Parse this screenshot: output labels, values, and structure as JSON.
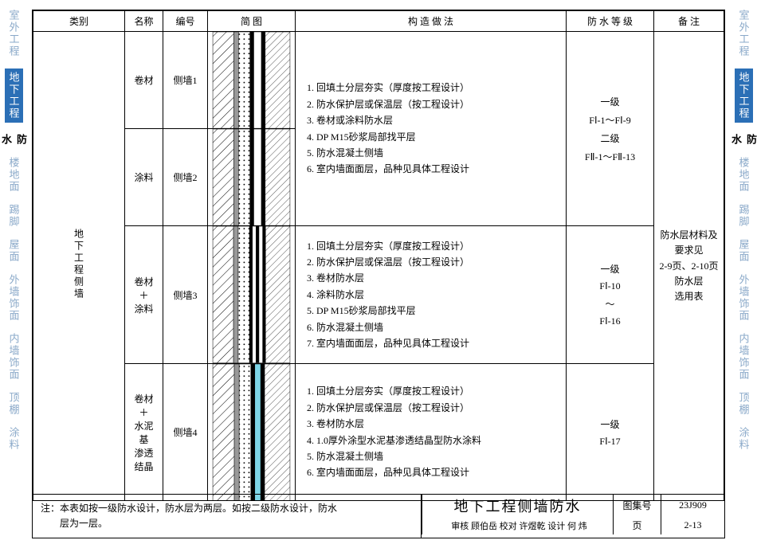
{
  "colors": {
    "tab_inactive": "#8aa9c9",
    "tab_active_bg": "#2b6fb6",
    "border": "#000000",
    "cyan": "#7ed6e8"
  },
  "side_tabs": {
    "items": [
      "室外工程",
      "地下工程",
      "楼地面",
      "踢脚",
      "屋面",
      "外墙饰面",
      "内墙饰面",
      "顶棚",
      "涂料"
    ],
    "active_index": 1,
    "prefix_char": "防",
    "prefix_char2": "水"
  },
  "header": {
    "cat": "类别",
    "name": "名称",
    "code": "编号",
    "diag": "简  图",
    "make": "构  造  做  法",
    "grade": "防 水 等 级",
    "note": "备  注"
  },
  "category_label": "地下工程侧墙",
  "rows": [
    {
      "name": "卷材",
      "code": "侧墙1",
      "diagram_style": "A",
      "make_list": [
        "回填土分层夯实（厚度按工程设计）",
        "防水保护层或保温层（按工程设计）",
        "卷材或涂料防水层",
        "DP M15砂浆局部找平层",
        "防水混凝土侧墙",
        "室内墙面面层，品种见具体工程设计"
      ],
      "grade": [
        "一级",
        "FⅠ-1～FⅠ-9",
        "",
        "二级",
        "FⅡ-1～FⅡ-13"
      ],
      "note": "防水层材料及要求见\n2-9页、2-10页防水层\n选用表",
      "shares_make_with_next": true
    },
    {
      "name": "涂料",
      "code": "侧墙2",
      "diagram_style": "A"
    },
    {
      "name": "卷材\n＋\n涂料",
      "code": "侧墙3",
      "diagram_style": "B",
      "make_list": [
        "回填土分层夯实（厚度按工程设计）",
        "防水保护层或保温层（按工程设计）",
        "卷材防水层",
        "涂料防水层",
        "DP M15砂浆局部找平层",
        "防水混凝土侧墙",
        "室内墙面面层，品种见具体工程设计"
      ],
      "grade": [
        "一级",
        "FⅠ-10",
        "～",
        "FⅠ-16"
      ]
    },
    {
      "name": "卷材\n＋\n水泥基\n渗透\n结晶",
      "code": "侧墙4",
      "diagram_style": "C",
      "make_list": [
        "回填土分层夯实（厚度按工程设计）",
        "防水保护层或保温层（按工程设计）",
        "卷材防水层",
        "1.0厚外涂型水泥基渗透结晶型防水涂料",
        "防水混凝土侧墙",
        "室内墙面面层，品种见具体工程设计"
      ],
      "grade": [
        "一级",
        "FⅠ-17"
      ]
    }
  ],
  "footer_note": "注：本表如按一级防水设计，防水层为两层。如按二级防水设计，防水\n　　层为一层。",
  "title_block": {
    "title": "地下工程侧墙防水",
    "atlas_label": "图集号",
    "atlas": "23J909",
    "page_label": "页",
    "page": "2-13",
    "row2": "审核 顾伯岳  校对 许煜乾  设计 何 炜"
  },
  "diagram_layers": {
    "A": [
      {
        "w": 22,
        "fill": "hatch"
      },
      {
        "w": 5,
        "fill": "#999"
      },
      {
        "w": 12,
        "fill": "dots"
      },
      {
        "w": 4,
        "fill": "#000"
      },
      {
        "w": 8,
        "fill": "#fff"
      },
      {
        "w": 4,
        "fill": "#000"
      },
      {
        "w": 26,
        "fill": "hatch2"
      }
    ],
    "B": [
      {
        "w": 22,
        "fill": "hatch"
      },
      {
        "w": 5,
        "fill": "#999"
      },
      {
        "w": 12,
        "fill": "dots"
      },
      {
        "w": 3,
        "fill": "#000"
      },
      {
        "w": 4,
        "fill": "#fff"
      },
      {
        "w": 3,
        "fill": "#000"
      },
      {
        "w": 4,
        "fill": "#fff"
      },
      {
        "w": 3,
        "fill": "#000"
      },
      {
        "w": 26,
        "fill": "hatch2"
      }
    ],
    "C": [
      {
        "w": 22,
        "fill": "hatch"
      },
      {
        "w": 5,
        "fill": "#999"
      },
      {
        "w": 12,
        "fill": "dots"
      },
      {
        "w": 4,
        "fill": "#000"
      },
      {
        "w": 6,
        "fill": "cyan"
      },
      {
        "w": 4,
        "fill": "#000"
      },
      {
        "w": 26,
        "fill": "hatch2"
      }
    ]
  }
}
